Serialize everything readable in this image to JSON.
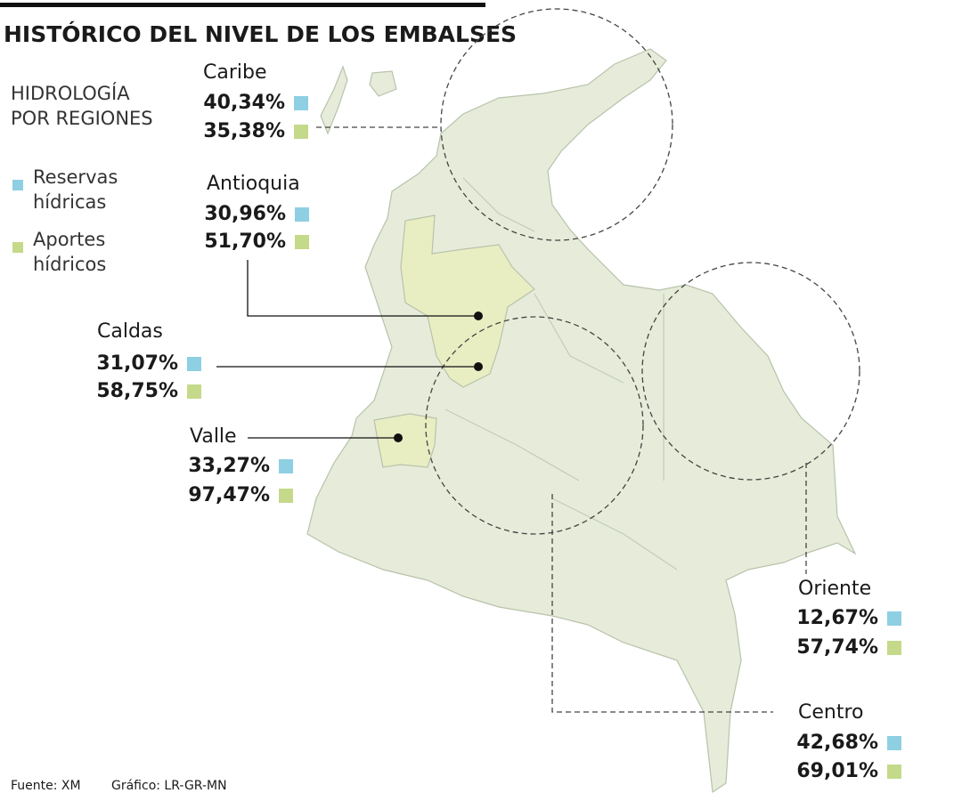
{
  "header": {
    "title": "HISTÓRICO DEL NIVEL DE LOS EMBALSES"
  },
  "legend": {
    "title": [
      "HIDROLOGÍA",
      "POR REGIONES"
    ],
    "items": [
      {
        "lines": [
          "Reservas",
          "hídricas"
        ],
        "color": "#8ecfe3"
      },
      {
        "lines": [
          "Aportes",
          "hídricos"
        ],
        "color": "#c5d98a"
      }
    ]
  },
  "regions": [
    {
      "name": "Caribe",
      "reservas": "40,34%",
      "aportes": "35,38%"
    },
    {
      "name": "Antioquia",
      "reservas": "30,96%",
      "aportes": "51,70%"
    },
    {
      "name": "Caldas",
      "reservas": "31,07%",
      "aportes": "58,75%"
    },
    {
      "name": "Valle",
      "reservas": "33,27%",
      "aportes": "97,47%"
    },
    {
      "name": "Oriente",
      "reservas": "12,67%",
      "aportes": "57,74%"
    },
    {
      "name": "Centro",
      "reservas": "42,68%",
      "aportes": "69,01%"
    }
  ],
  "footer": {
    "source": "Fuente: XM",
    "credit": "Gráfico: LR-GR-MN"
  }
}
